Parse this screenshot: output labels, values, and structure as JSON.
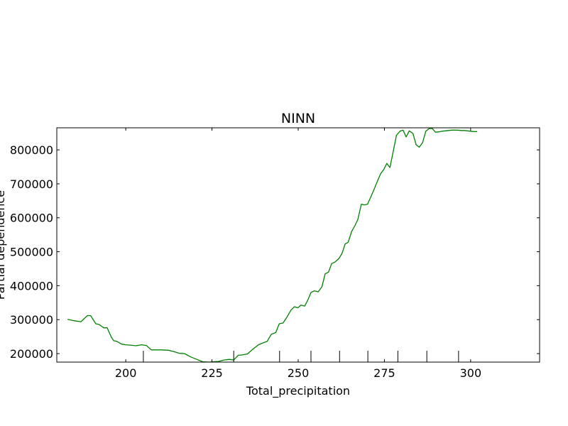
{
  "chart_data": {
    "type": "line",
    "title": "NINN",
    "xlabel": "Total_precipitation",
    "ylabel": "Partial dependence",
    "xlim": [
      180,
      320
    ],
    "ylim": [
      175000,
      865000
    ],
    "x_ticks": [
      200,
      225,
      250,
      275,
      300
    ],
    "x_tick_labels": [
      "200",
      "225",
      "250",
      "275",
      "300"
    ],
    "y_ticks": [
      200000,
      300000,
      400000,
      500000,
      600000,
      700000,
      800000
    ],
    "y_tick_labels": [
      "200000",
      "300000",
      "400000",
      "500000",
      "600000",
      "700000",
      "800000"
    ],
    "series_color": "#008000",
    "series": [
      {
        "name": "partial dependence",
        "x": [
          183.1,
          185.0,
          187.0,
          188.9,
          189.8,
          191.3,
          192.2,
          193.6,
          194.6,
          195.8,
          196.5,
          197.4,
          198.8,
          200.0,
          201.4,
          203.0,
          204.6,
          206.0,
          207.4,
          209.1,
          210.5,
          212.3,
          214.0,
          215.5,
          217.0,
          218.9,
          220.6,
          222.3,
          224.0,
          225.4,
          227.0,
          228.4,
          230.0,
          231.3,
          232.6,
          233.6,
          235.3,
          236.7,
          238.5,
          239.9,
          241.0,
          242.2,
          243.5,
          244.5,
          245.6,
          246.7,
          247.9,
          248.9,
          249.9,
          250.8,
          251.9,
          252.8,
          253.7,
          254.7,
          255.8,
          256.9,
          257.8,
          258.8,
          259.7,
          260.7,
          261.8,
          262.7,
          263.6,
          264.5,
          265.5,
          266.4,
          267.3,
          268.3,
          269.2,
          270.1,
          271.0,
          272.0,
          272.9,
          273.9,
          274.8,
          275.7,
          276.6,
          277.6,
          278.5,
          279.5,
          280.4,
          281.3,
          282.2,
          283.3,
          284.2,
          285.1,
          286.1,
          287.0,
          288.0,
          288.9,
          289.8,
          290.8,
          291.7,
          292.6,
          293.5,
          294.5,
          295.4,
          296.3,
          297.2,
          298.2,
          299.1,
          300.0,
          300.9,
          301.9
        ],
        "values": [
          301000,
          297000,
          294000,
          312000,
          312000,
          288000,
          286000,
          276000,
          276000,
          249000,
          238000,
          236000,
          228000,
          226000,
          225000,
          223000,
          226000,
          224000,
          211000,
          211000,
          211000,
          210000,
          206000,
          201000,
          200000,
          190000,
          183000,
          176000,
          175000,
          176000,
          177000,
          181000,
          183000,
          181000,
          195000,
          196000,
          199000,
          212000,
          226000,
          232000,
          236000,
          257000,
          262000,
          288000,
          290000,
          307000,
          328000,
          338000,
          335000,
          343000,
          340000,
          358000,
          380000,
          385000,
          382000,
          397000,
          435000,
          440000,
          465000,
          470000,
          480000,
          495000,
          523000,
          528000,
          560000,
          576000,
          595000,
          640000,
          638000,
          640000,
          660000,
          684000,
          706000,
          730000,
          742000,
          760000,
          748000,
          798000,
          843000,
          855000,
          858000,
          838000,
          856000,
          848000,
          815000,
          808000,
          822000,
          855000,
          863000,
          863000,
          852000,
          853000,
          855000,
          856000,
          857000,
          858000,
          858000,
          858000,
          857000,
          857000,
          856000,
          855000,
          854000,
          854000
        ],
        "note": "values beyond the visible top edge are clipped in the original"
      }
    ],
    "rug_x": [
      205.1,
      231.3,
      244.6,
      253.7,
      262.0,
      270.2,
      278.9,
      287.3,
      296.5
    ]
  }
}
